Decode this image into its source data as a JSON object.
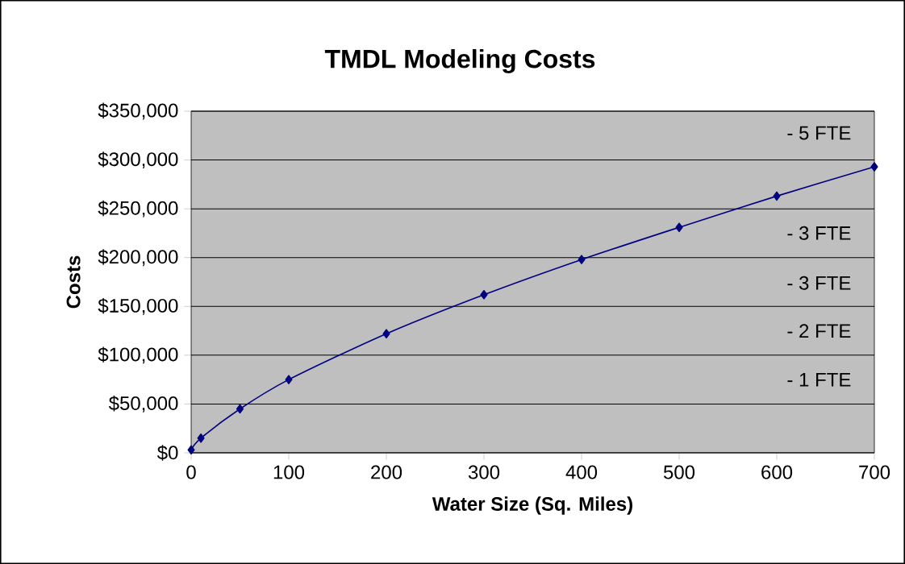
{
  "chart_data": {
    "type": "line",
    "title": "TMDL Modeling Costs",
    "xlabel": "Water Size (Sq. Miles)",
    "ylabel": "Costs",
    "x": [
      0,
      10,
      50,
      100,
      200,
      300,
      400,
      500,
      600,
      700
    ],
    "series": [
      {
        "color": "#000080",
        "values": [
          3000,
          15000,
          45000,
          75000,
          122000,
          162000,
          198000,
          231000,
          263000,
          293000
        ]
      }
    ],
    "xlim": [
      0,
      700
    ],
    "xticks": [
      0,
      100,
      200,
      300,
      400,
      500,
      600,
      700
    ],
    "ylim": [
      0,
      350000
    ],
    "yticks": [
      {
        "value": 0,
        "label": "$0"
      },
      {
        "value": 50000,
        "label": "$50,000"
      },
      {
        "value": 100000,
        "label": "$100,000"
      },
      {
        "value": 150000,
        "label": "$150,000"
      },
      {
        "value": 200000,
        "label": "$200,000"
      },
      {
        "value": 250000,
        "label": "$250,000"
      },
      {
        "value": 300000,
        "label": "$300,000"
      },
      {
        "value": 350000,
        "label": "$350,000"
      }
    ],
    "grid": "y",
    "marker": "diamond",
    "line_style": "solid",
    "annotations": [
      "- 5 FTE",
      "- 3 FTE",
      "- 3 FTE",
      "- 2 FTE",
      "- 1 FTE"
    ]
  }
}
